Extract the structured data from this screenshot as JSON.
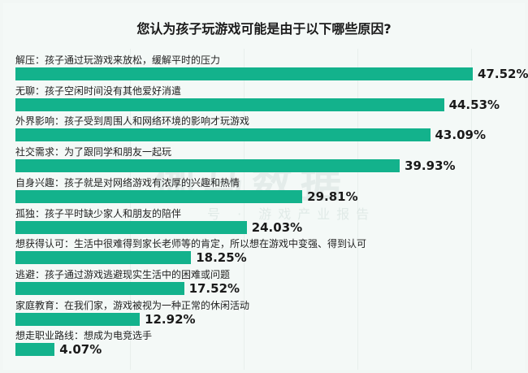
{
  "chart_data": {
    "type": "bar",
    "orientation": "horizontal",
    "title": "您认为孩子玩游戏可能是由于以下哪些原因?",
    "categories": [
      "解压：孩子通过玩游戏来放松，缓解平时的压力",
      "无聊：孩子空闲时间没有其他爱好消遣",
      "外界影响：孩子受到周围人和网络环境的影响才玩游戏",
      "社交需求：为了跟同学和朋友一起玩",
      "自身兴趣：孩子就是对网络游戏有浓厚的兴趣和热情",
      "孤独：孩子平时缺少家人和朋友的陪伴",
      "想获得认可：生活中很难得到家长老师等的肯定，所以想在游戏中变强、得到认可",
      "逃避：孩子通过游戏逃避现实生活中的困难或问题",
      "家庭教育：在我们家，游戏被视为一种正常的休闲活动",
      "想走职业路线：想成为电竞选手"
    ],
    "values": [
      47.52,
      44.53,
      43.09,
      39.93,
      29.81,
      24.03,
      18.25,
      17.52,
      12.92,
      4.07
    ],
    "value_labels": [
      "47.52%",
      "44.53%",
      "43.09%",
      "39.93%",
      "29.81%",
      "24.03%",
      "18.25%",
      "17.52%",
      "12.92%",
      "4.07%"
    ],
    "unit": "%",
    "xlim": [
      0,
      47.52
    ],
    "grid": true,
    "bar_color": "#13b28c",
    "background_color": "#f4f9f7"
  },
  "watermark": {
    "main": "伽马数据",
    "sub": "号 · 游戏产业报告"
  }
}
